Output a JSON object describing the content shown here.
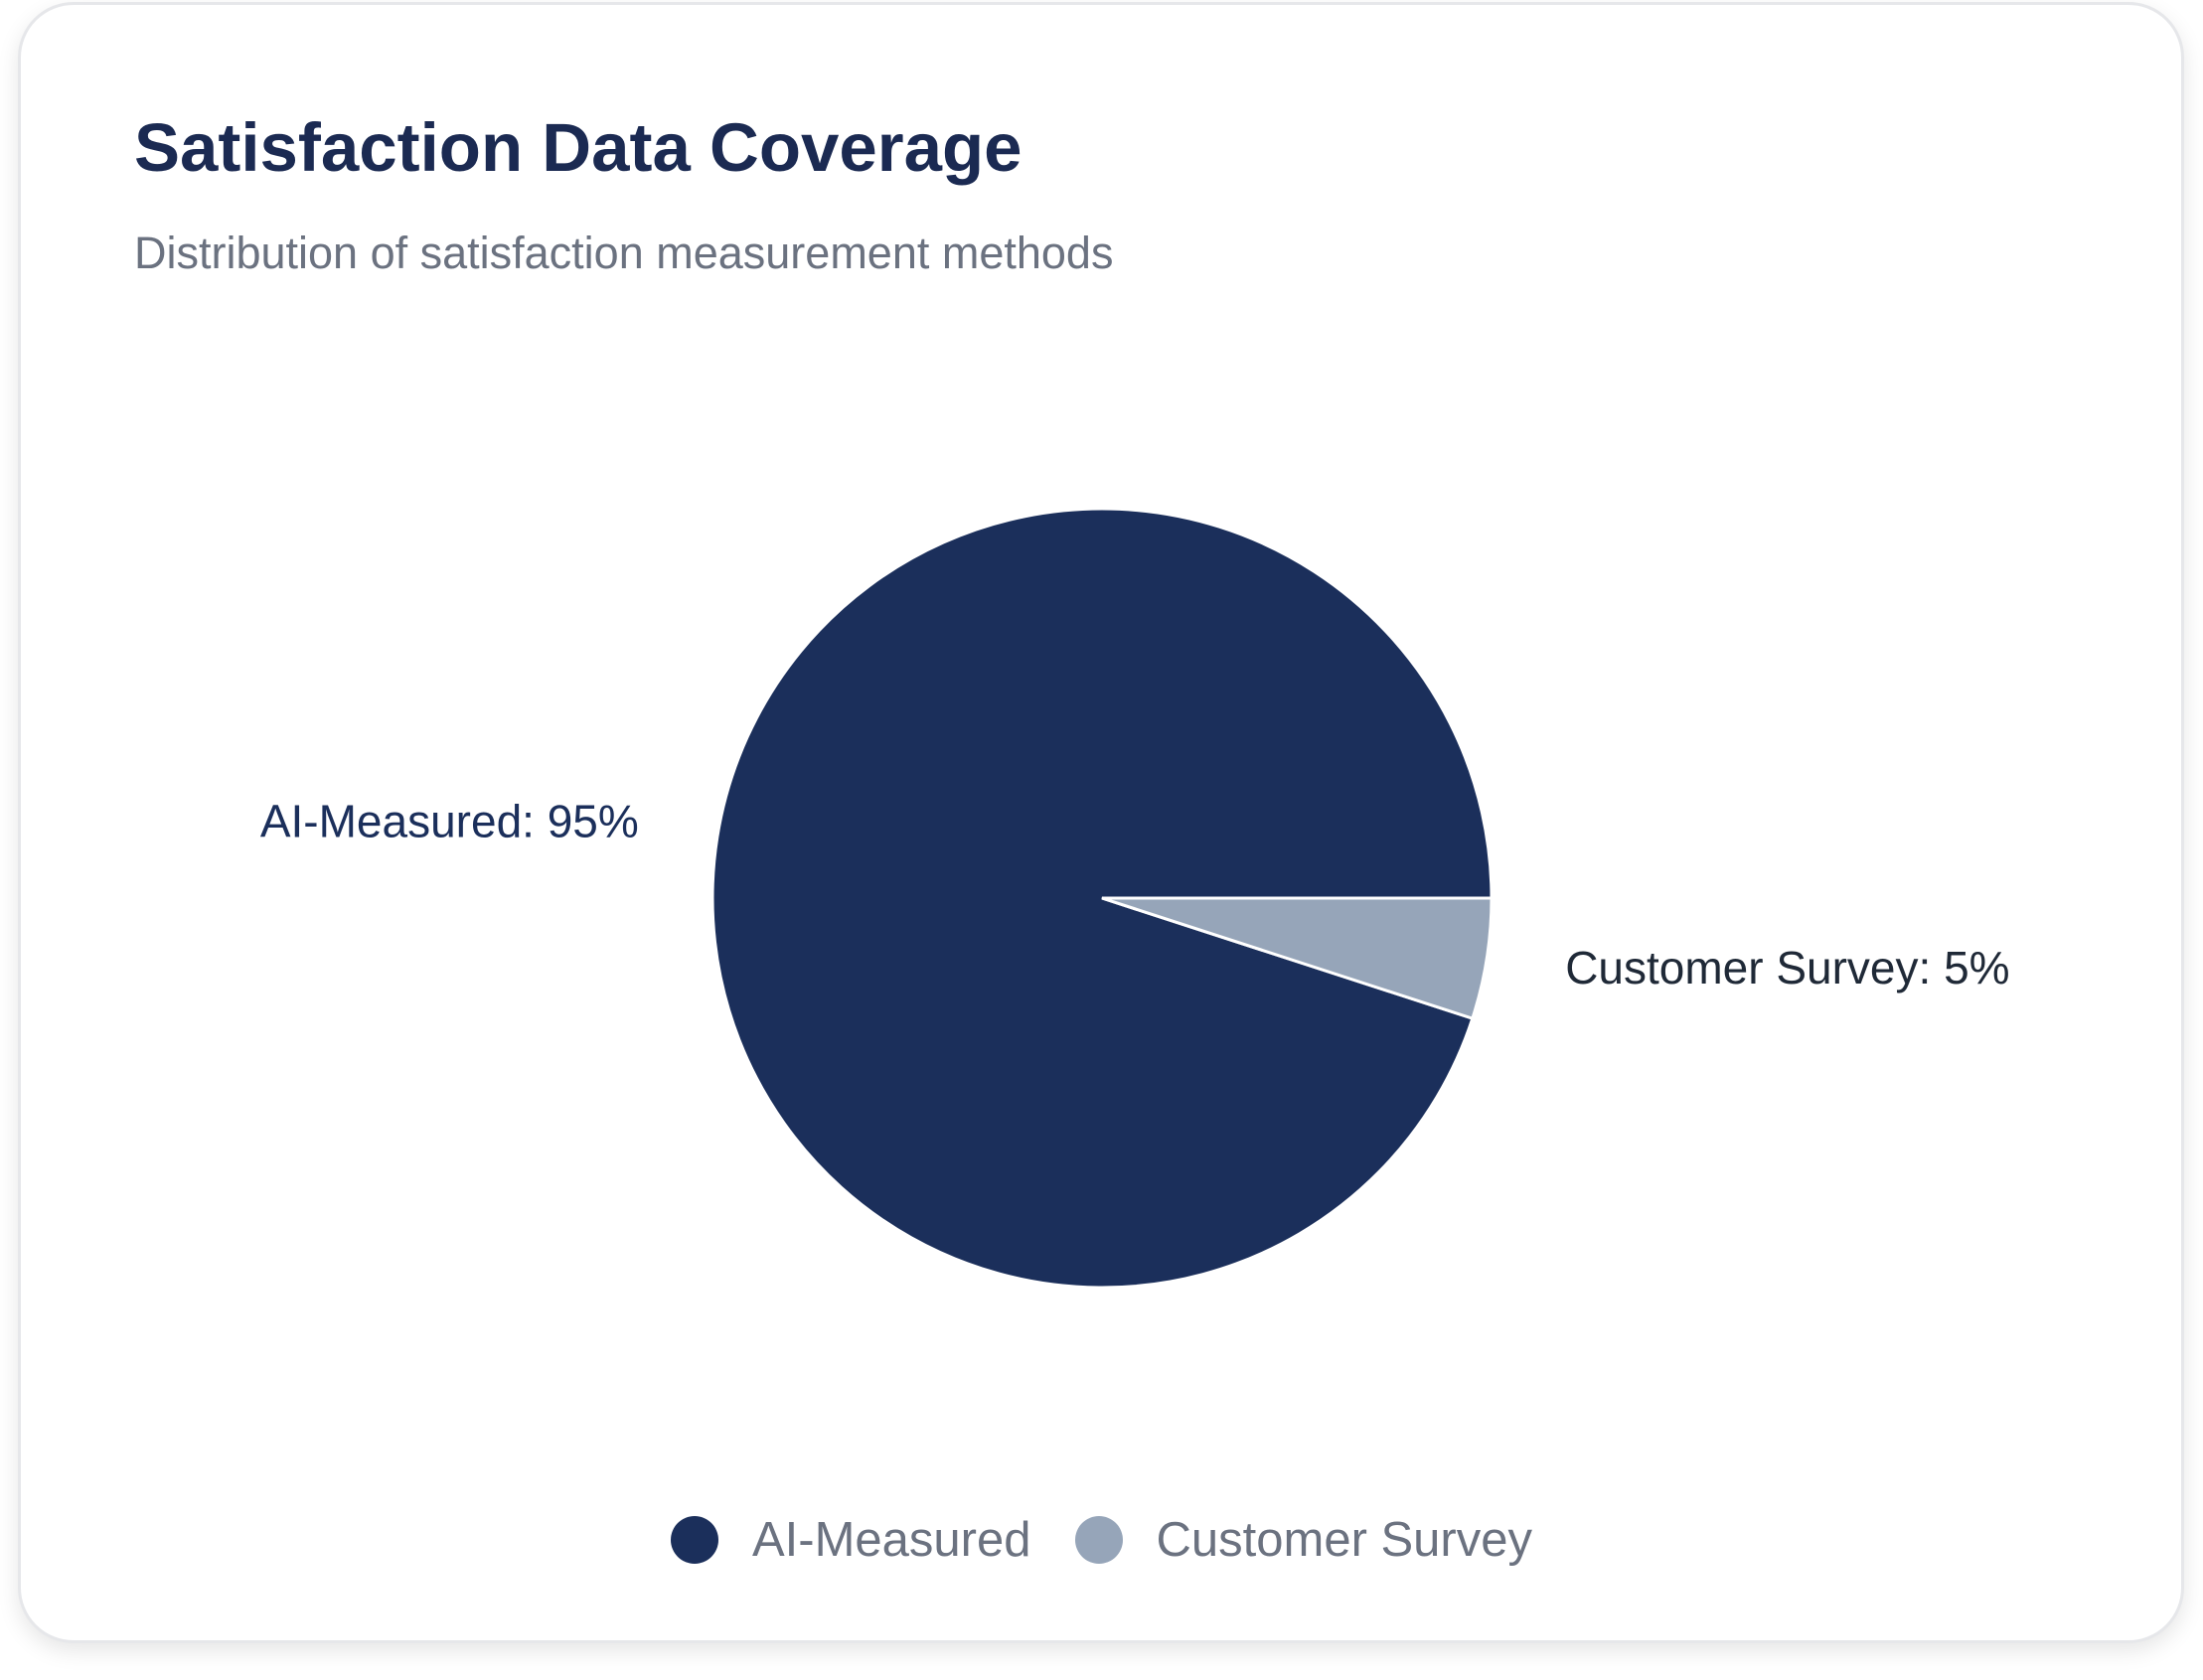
{
  "card": {
    "title": "Satisfaction Data Coverage",
    "subtitle": "Distribution of satisfaction measurement methods"
  },
  "chart_data": {
    "type": "pie",
    "title": "Satisfaction Data Coverage",
    "subtitle": "Distribution of satisfaction measurement methods",
    "categories": [
      "AI-Measured",
      "Customer Survey"
    ],
    "values": [
      95,
      5
    ],
    "unit": "%",
    "colors": [
      "#1b2f5b",
      "#96a5b9"
    ],
    "slice_labels": [
      "AI-Measured: 95%",
      "Customer Survey: 5%"
    ],
    "label_colors": [
      "#1b2f5b",
      "#1f2937"
    ],
    "legend": {
      "position": "bottom-center",
      "items": [
        "AI-Measured",
        "Customer Survey"
      ]
    }
  }
}
